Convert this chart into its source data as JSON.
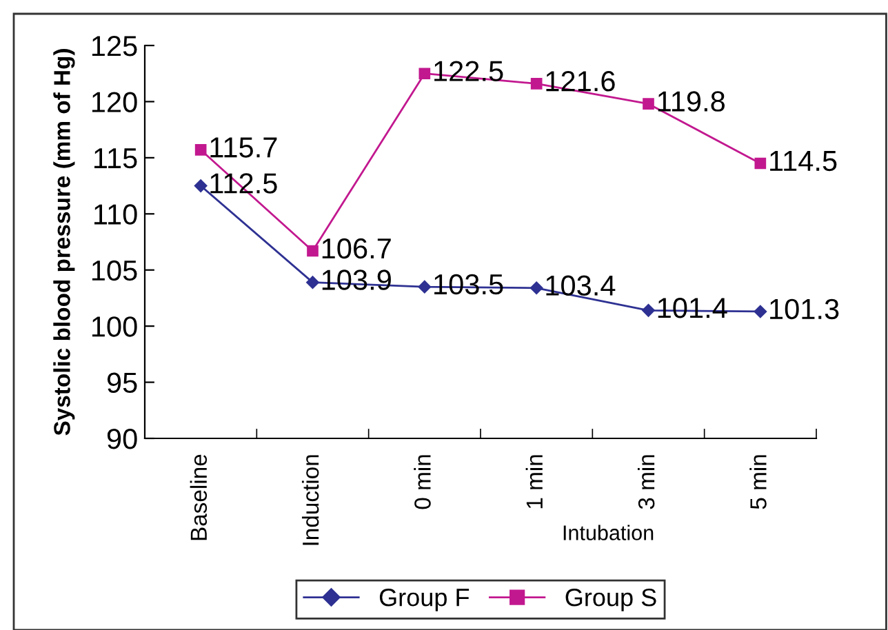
{
  "chart_data": {
    "type": "line",
    "ylabel": "Systolic blood pressure (mm of Hg)",
    "xlabel": "Intubation",
    "categories": [
      "Baseline",
      "Induction",
      "0 min",
      "1 min",
      "3 min",
      "5 min"
    ],
    "series": [
      {
        "name": "Group F",
        "color": "#2e3192",
        "marker": "diamond",
        "values": [
          112.5,
          103.9,
          103.5,
          103.4,
          101.4,
          101.3
        ]
      },
      {
        "name": "Group S",
        "color": "#c2188f",
        "marker": "square",
        "values": [
          115.7,
          106.7,
          122.5,
          121.6,
          119.8,
          114.5
        ]
      }
    ],
    "ylim": [
      90,
      125
    ],
    "yticks": [
      90,
      95,
      100,
      105,
      110,
      115,
      120,
      125
    ],
    "data_labels": true,
    "legend": "bottom",
    "grid": false,
    "line_style": "solid"
  }
}
